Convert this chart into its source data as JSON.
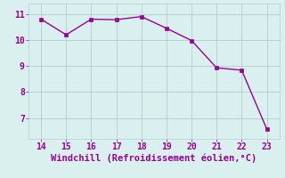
{
  "x": [
    14,
    15,
    16,
    17,
    18,
    19,
    20,
    21,
    22,
    23
  ],
  "y": [
    10.8,
    10.2,
    10.8,
    10.78,
    10.9,
    10.45,
    9.98,
    8.93,
    8.84,
    6.58
  ],
  "line_color": "#990099",
  "marker": "s",
  "marker_size": 2.5,
  "line_width": 1.0,
  "xlabel": "Windchill (Refroidissement éolien,°C)",
  "xlim": [
    13.5,
    23.5
  ],
  "ylim": [
    6.2,
    11.4
  ],
  "xticks": [
    14,
    15,
    16,
    17,
    18,
    19,
    20,
    21,
    22,
    23
  ],
  "yticks": [
    7,
    8,
    9,
    10,
    11
  ],
  "background_color": "#d9f0ee",
  "grid_color": "#b0cece",
  "tick_label_color": "#990099",
  "xlabel_color": "#990099",
  "tick_label_fontsize": 7,
  "xlabel_fontsize": 7.5
}
